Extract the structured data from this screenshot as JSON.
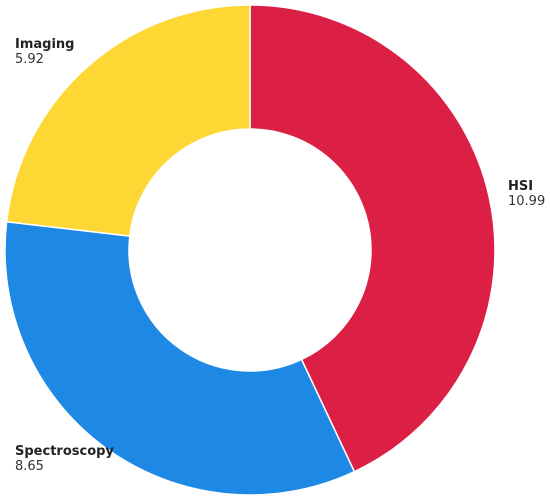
{
  "chart_data": {
    "type": "donut",
    "categories": [
      "HSI",
      "Spectroscopy",
      "Imaging"
    ],
    "values": [
      10.99,
      8.65,
      5.92
    ],
    "colors": [
      "#dc1f45",
      "#1e88e5",
      "#fdd835"
    ]
  }
}
